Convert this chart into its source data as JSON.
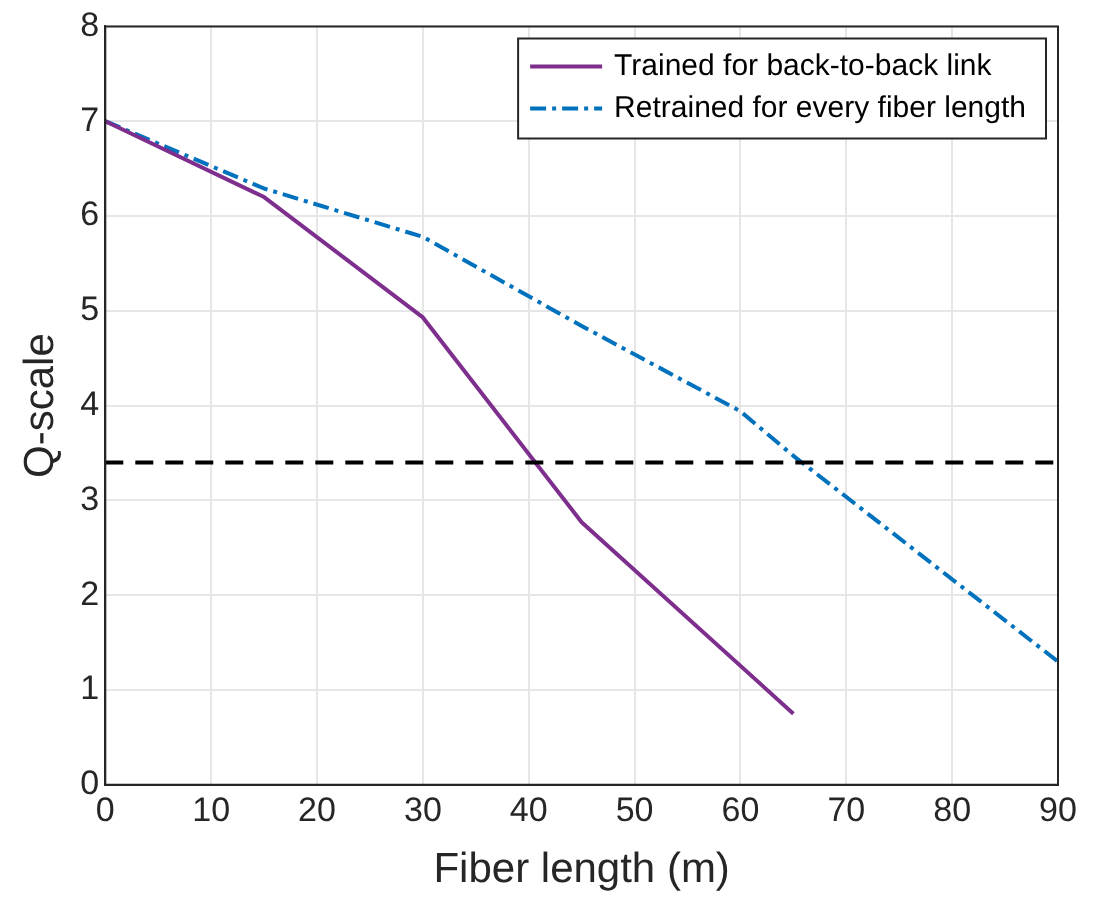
{
  "chart_data": {
    "type": "line",
    "xlabel": "Fiber length (m)",
    "ylabel": "Q-scale",
    "xlim": [
      0,
      90
    ],
    "xticks": [
      0,
      10,
      20,
      30,
      40,
      50,
      60,
      70,
      80,
      90
    ],
    "ylim": [
      0,
      8
    ],
    "yticks": [
      0,
      1,
      2,
      3,
      4,
      5,
      6,
      7,
      8
    ],
    "grid": true,
    "legend": "top right",
    "marker": "none",
    "series": [
      {
        "name": "Trained for back-to-back link",
        "color": "#7e2f8e",
        "line_style": "solid",
        "x": [
          0,
          15,
          30,
          45,
          65
        ],
        "values": [
          7,
          6.2,
          4.93,
          2.77,
          0.75
        ]
      },
      {
        "name": "Retrained for every fiber length",
        "color": "#0072bd",
        "line_style": "dashed",
        "x": [
          0,
          15,
          30,
          45,
          60,
          65,
          90
        ],
        "values": [
          7,
          6.29,
          5.78,
          4.84,
          3.94,
          3.47,
          1.3
        ]
      }
    ],
    "ref_lines": [
      {
        "axis": "y",
        "value": 3.4,
        "color": "#000000",
        "line_style": "dashed"
      }
    ]
  }
}
